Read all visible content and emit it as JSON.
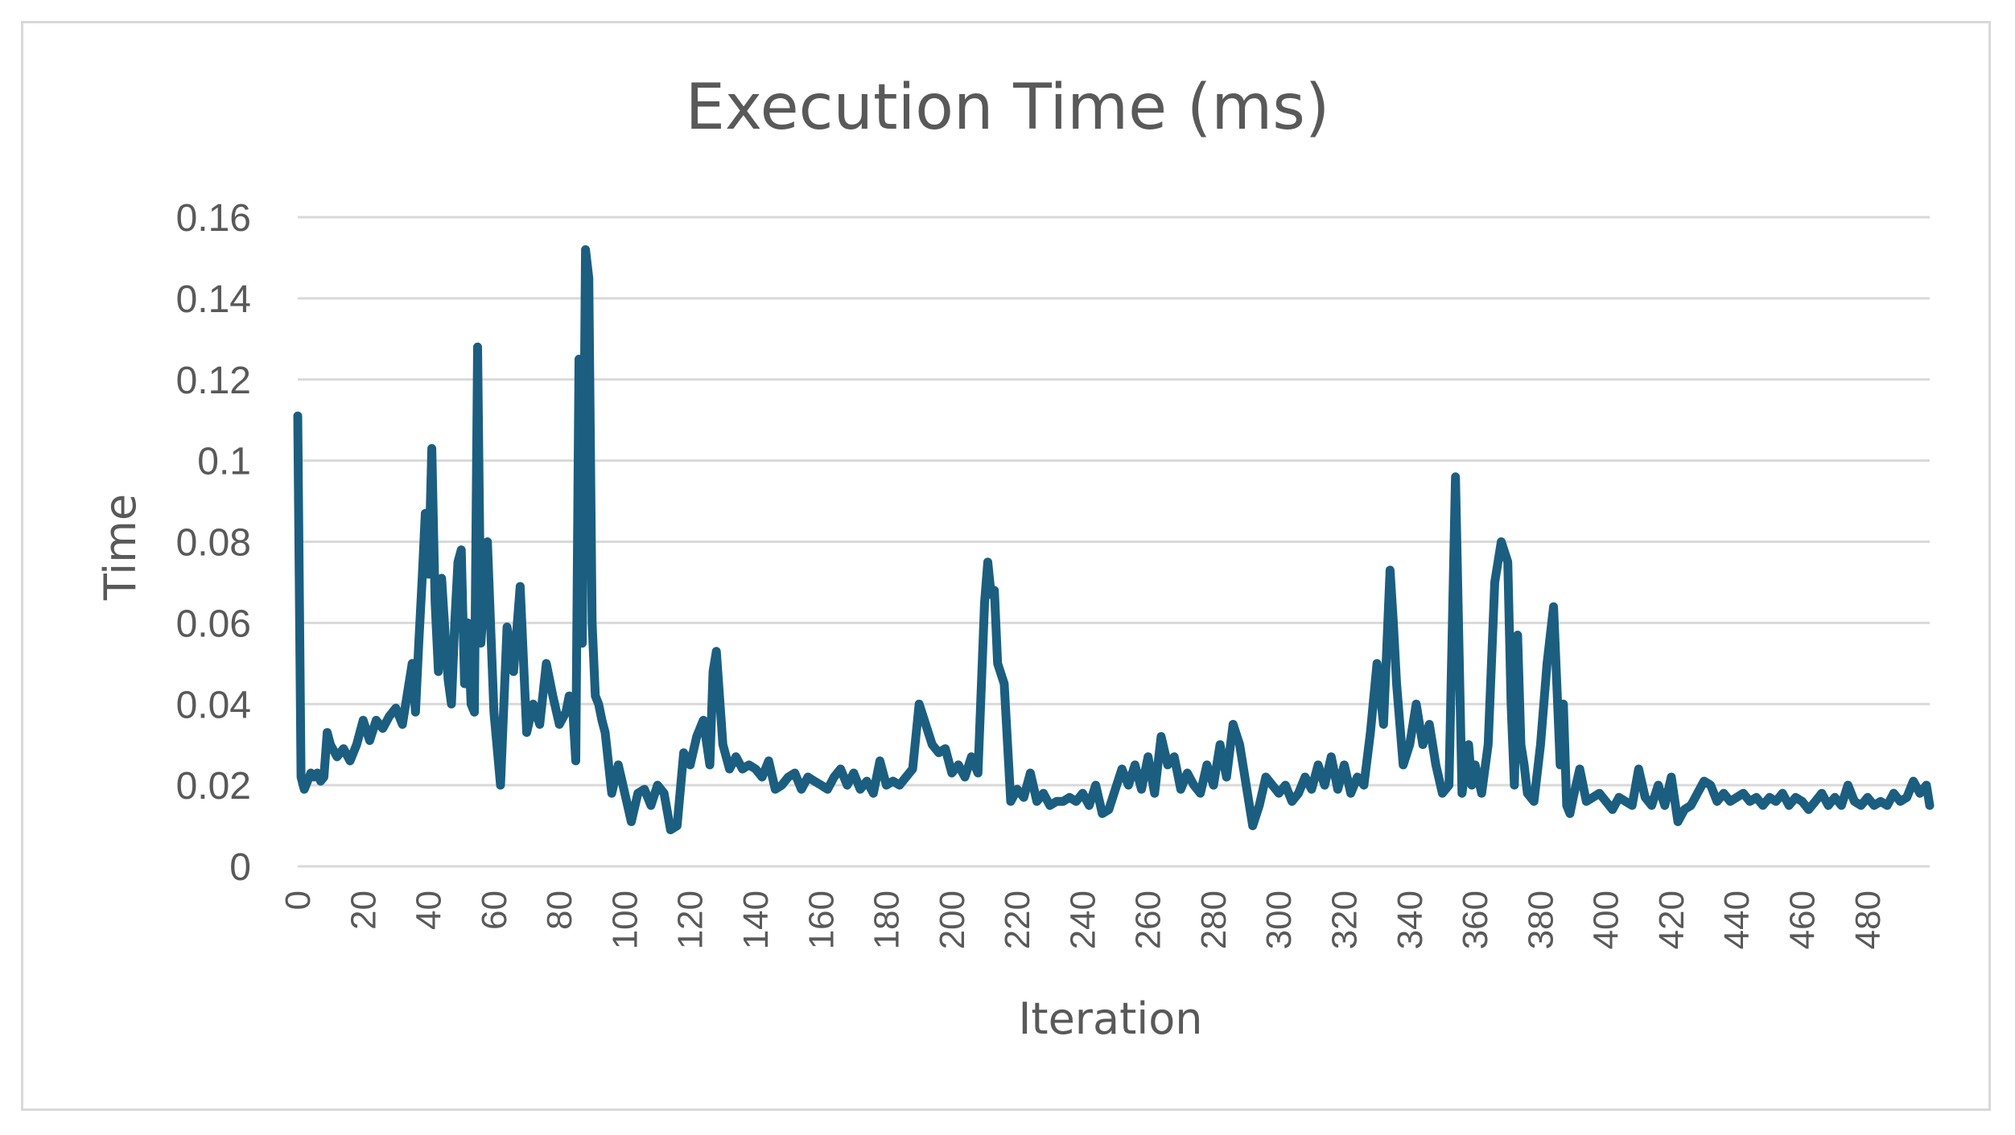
{
  "chart_data": {
    "type": "line",
    "title": "Execution Time (ms)",
    "xlabel": "Iteration",
    "ylabel": "Time",
    "ylim": [
      0,
      0.16
    ],
    "yticks": [
      "0",
      "0.02",
      "0.04",
      "0.06",
      "0.08",
      "0.1",
      "0.12",
      "0.14",
      "0.16"
    ],
    "xticks": [
      "0",
      "20",
      "40",
      "60",
      "80",
      "100",
      "120",
      "140",
      "160",
      "180",
      "200",
      "220",
      "240",
      "260",
      "280",
      "300",
      "320",
      "340",
      "360",
      "380",
      "400",
      "420",
      "440",
      "460",
      "480"
    ],
    "xlim": [
      0,
      499
    ],
    "grid": true,
    "colors": {
      "series": "#1b5e80",
      "grid": "#d9d9d9",
      "text": "#595959",
      "border": "#d9d9d9"
    },
    "series": [
      {
        "name": "Execution Time (ms)",
        "x": [
          0,
          1,
          2,
          3,
          4,
          5,
          6,
          7,
          8,
          9,
          10,
          12,
          14,
          16,
          18,
          20,
          22,
          24,
          26,
          28,
          30,
          32,
          34,
          35,
          36,
          37,
          38,
          39,
          40,
          41,
          42,
          43,
          44,
          45,
          46,
          47,
          48,
          49,
          50,
          51,
          52,
          53,
          54,
          55,
          56,
          58,
          60,
          62,
          64,
          66,
          68,
          70,
          72,
          74,
          76,
          78,
          80,
          82,
          83,
          84,
          85,
          86,
          87,
          88,
          89,
          90,
          91,
          92,
          93,
          94,
          96,
          98,
          100,
          102,
          104,
          106,
          108,
          110,
          112,
          114,
          116,
          118,
          120,
          122,
          124,
          126,
          127,
          128,
          130,
          132,
          134,
          136,
          138,
          140,
          142,
          144,
          146,
          148,
          150,
          152,
          154,
          156,
          158,
          160,
          162,
          164,
          166,
          168,
          170,
          172,
          174,
          176,
          178,
          180,
          182,
          184,
          186,
          188,
          190,
          192,
          194,
          196,
          198,
          200,
          202,
          204,
          206,
          208,
          210,
          211,
          212,
          213,
          214,
          216,
          218,
          220,
          222,
          224,
          226,
          228,
          230,
          232,
          234,
          236,
          238,
          240,
          242,
          244,
          246,
          248,
          250,
          252,
          254,
          256,
          258,
          260,
          262,
          264,
          266,
          268,
          270,
          272,
          274,
          276,
          278,
          280,
          282,
          284,
          286,
          288,
          290,
          292,
          294,
          296,
          298,
          300,
          302,
          304,
          306,
          308,
          310,
          312,
          314,
          316,
          318,
          320,
          322,
          324,
          326,
          328,
          330,
          332,
          334,
          335,
          336,
          337,
          338,
          340,
          342,
          344,
          346,
          348,
          350,
          352,
          354,
          356,
          358,
          359,
          360,
          362,
          364,
          366,
          368,
          370,
          371,
          372,
          373,
          374,
          375,
          376,
          378,
          380,
          382,
          384,
          386,
          387,
          388,
          389,
          390,
          392,
          394,
          396,
          398,
          400,
          402,
          404,
          406,
          408,
          410,
          412,
          414,
          416,
          418,
          420,
          422,
          424,
          426,
          428,
          430,
          432,
          434,
          436,
          438,
          440,
          442,
          444,
          446,
          448,
          450,
          452,
          454,
          456,
          458,
          460,
          462,
          464,
          466,
          468,
          470,
          472,
          474,
          476,
          478,
          480,
          482,
          484,
          486,
          488,
          490,
          492,
          494,
          496,
          498,
          499
        ],
        "values": [
          0.111,
          0.022,
          0.019,
          0.021,
          0.023,
          0.022,
          0.023,
          0.021,
          0.022,
          0.033,
          0.03,
          0.027,
          0.029,
          0.026,
          0.03,
          0.036,
          0.031,
          0.036,
          0.034,
          0.037,
          0.039,
          0.035,
          0.045,
          0.05,
          0.038,
          0.055,
          0.07,
          0.087,
          0.072,
          0.103,
          0.065,
          0.048,
          0.071,
          0.058,
          0.046,
          0.04,
          0.06,
          0.075,
          0.078,
          0.045,
          0.06,
          0.04,
          0.038,
          0.128,
          0.055,
          0.08,
          0.038,
          0.02,
          0.059,
          0.048,
          0.069,
          0.033,
          0.04,
          0.035,
          0.05,
          0.042,
          0.035,
          0.038,
          0.042,
          0.04,
          0.026,
          0.125,
          0.055,
          0.152,
          0.145,
          0.06,
          0.042,
          0.04,
          0.036,
          0.033,
          0.018,
          0.025,
          0.018,
          0.011,
          0.018,
          0.019,
          0.015,
          0.02,
          0.018,
          0.009,
          0.01,
          0.028,
          0.025,
          0.032,
          0.036,
          0.025,
          0.048,
          0.053,
          0.03,
          0.024,
          0.027,
          0.024,
          0.025,
          0.024,
          0.022,
          0.026,
          0.019,
          0.02,
          0.022,
          0.023,
          0.019,
          0.022,
          0.021,
          0.02,
          0.019,
          0.022,
          0.024,
          0.02,
          0.023,
          0.019,
          0.021,
          0.018,
          0.026,
          0.02,
          0.021,
          0.02,
          0.022,
          0.024,
          0.04,
          0.035,
          0.03,
          0.028,
          0.029,
          0.023,
          0.025,
          0.022,
          0.027,
          0.023,
          0.065,
          0.075,
          0.067,
          0.068,
          0.05,
          0.045,
          0.016,
          0.019,
          0.017,
          0.023,
          0.016,
          0.018,
          0.015,
          0.016,
          0.016,
          0.017,
          0.016,
          0.018,
          0.015,
          0.02,
          0.013,
          0.014,
          0.019,
          0.024,
          0.02,
          0.025,
          0.019,
          0.027,
          0.018,
          0.032,
          0.025,
          0.027,
          0.019,
          0.023,
          0.02,
          0.018,
          0.025,
          0.02,
          0.03,
          0.022,
          0.035,
          0.03,
          0.02,
          0.01,
          0.015,
          0.022,
          0.02,
          0.018,
          0.02,
          0.016,
          0.018,
          0.022,
          0.019,
          0.025,
          0.02,
          0.027,
          0.019,
          0.025,
          0.018,
          0.022,
          0.02,
          0.033,
          0.05,
          0.035,
          0.073,
          0.06,
          0.045,
          0.035,
          0.025,
          0.03,
          0.04,
          0.03,
          0.035,
          0.025,
          0.018,
          0.02,
          0.096,
          0.018,
          0.03,
          0.02,
          0.025,
          0.018,
          0.03,
          0.07,
          0.08,
          0.075,
          0.04,
          0.02,
          0.057,
          0.03,
          0.025,
          0.018,
          0.016,
          0.03,
          0.05,
          0.064,
          0.025,
          0.04,
          0.015,
          0.013,
          0.017,
          0.024,
          0.016,
          0.017,
          0.018,
          0.016,
          0.014,
          0.017,
          0.016,
          0.015,
          0.024,
          0.017,
          0.015,
          0.02,
          0.015,
          0.022,
          0.011,
          0.014,
          0.015,
          0.018,
          0.021,
          0.02,
          0.016,
          0.018,
          0.016,
          0.017,
          0.018,
          0.016,
          0.017,
          0.015,
          0.017,
          0.016,
          0.018,
          0.015,
          0.017,
          0.016,
          0.014,
          0.016,
          0.018,
          0.015,
          0.017,
          0.015,
          0.02,
          0.016,
          0.015,
          0.017,
          0.015,
          0.016,
          0.015,
          0.018,
          0.016,
          0.017,
          0.021,
          0.018,
          0.02,
          0.015
        ]
      }
    ]
  }
}
